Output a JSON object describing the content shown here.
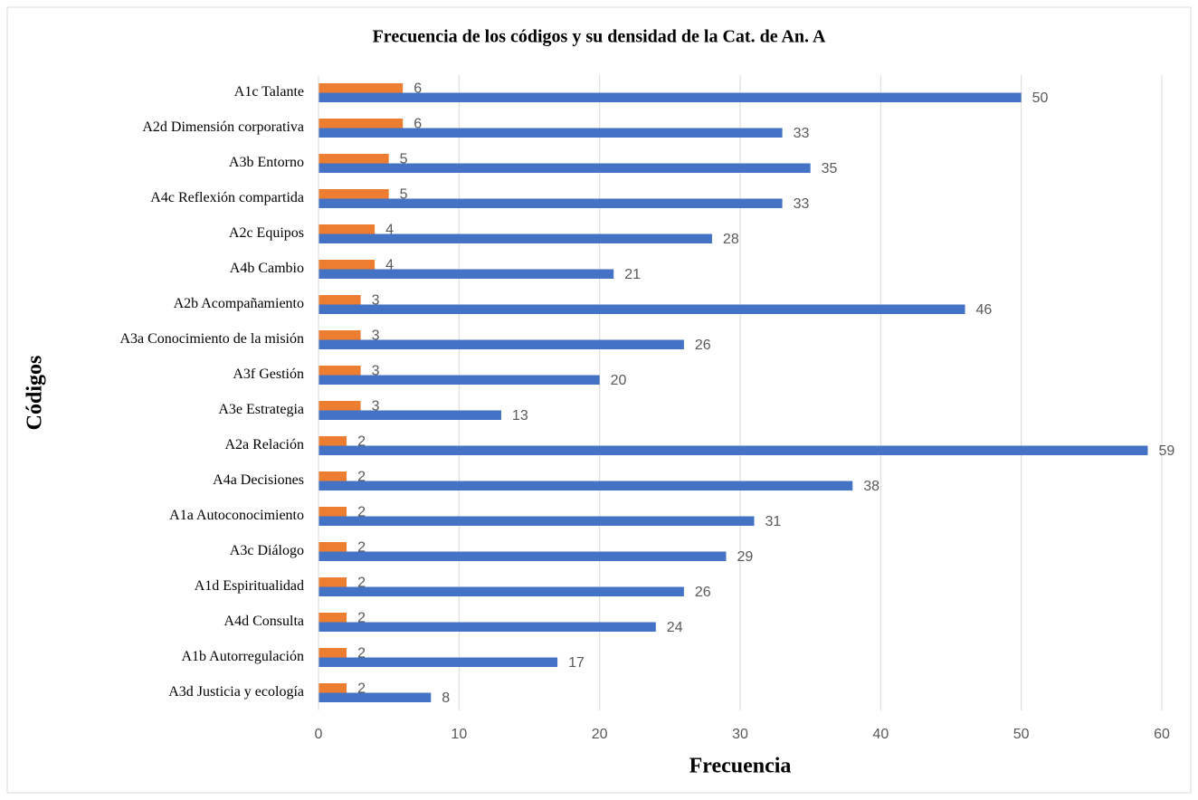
{
  "chart_data": {
    "type": "bar",
    "orientation": "horizontal",
    "title": "Frecuencia de los códigos y su densidad de la Cat. de An. A",
    "x_label": "Frecuencia",
    "y_label": "Códigos",
    "categories": [
      "A1c Talante",
      "A2d Dimensión corporativa",
      "A3b Entorno",
      "A4c Reflexión compartida",
      "A2c Equipos",
      "A4b Cambio",
      "A2b Acompañamiento",
      "A3a Conocimiento de la misión",
      "A3f Gestión",
      "A3e Estrategia",
      "A2a Relación",
      "A4a Decisiones",
      "A1a Autoconocimiento",
      "A3c Diálogo",
      "A1d Espiritualidad",
      "A4d Consulta",
      "A1b Autorregulación",
      "A3d Justicia y ecología"
    ],
    "series": [
      {
        "color": "#ed7d31",
        "values": [
          6,
          6,
          5,
          5,
          4,
          4,
          3,
          3,
          3,
          3,
          2,
          2,
          2,
          2,
          2,
          2,
          2,
          2
        ]
      },
      {
        "color": "#4472c4",
        "values": [
          50,
          33,
          35,
          33,
          28,
          21,
          46,
          26,
          20,
          13,
          59,
          38,
          31,
          29,
          26,
          24,
          17,
          8
        ]
      }
    ],
    "xlim": [
      0,
      60
    ],
    "xticks": [
      0,
      10,
      20,
      30,
      40,
      50,
      60
    ],
    "grid": true,
    "data_labels": true
  }
}
